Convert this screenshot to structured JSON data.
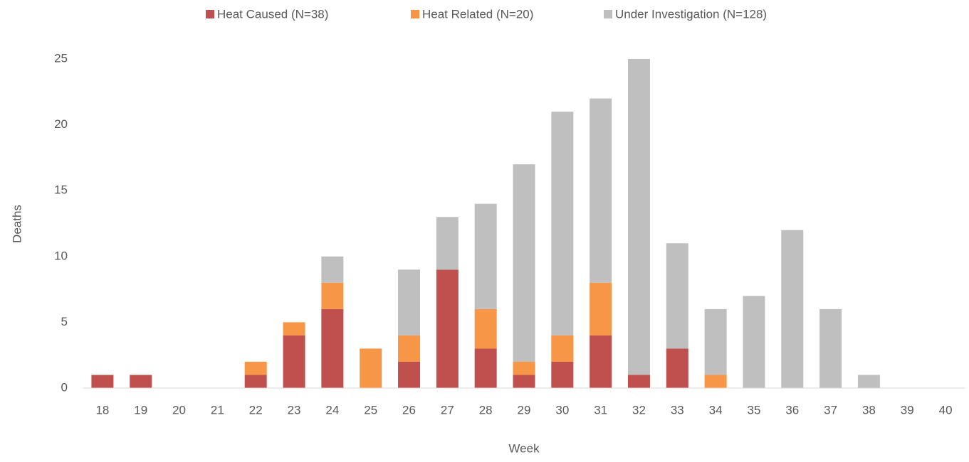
{
  "chart_data": {
    "type": "stacked-bar",
    "x_label": "Week",
    "y_label": "Deaths",
    "categories": [
      "18",
      "19",
      "20",
      "21",
      "22",
      "23",
      "24",
      "25",
      "26",
      "27",
      "28",
      "29",
      "30",
      "31",
      "32",
      "33",
      "34",
      "35",
      "36",
      "37",
      "38",
      "39",
      "40"
    ],
    "series": [
      {
        "name": "Heat Caused (N=38)",
        "color": "#c0504d",
        "values": [
          1,
          1,
          0,
          0,
          1,
          4,
          6,
          0,
          2,
          9,
          3,
          1,
          2,
          4,
          1,
          3,
          0,
          0,
          0,
          0,
          0,
          0,
          0
        ]
      },
      {
        "name": "Heat Related (N=20)",
        "color": "#f79646",
        "values": [
          0,
          0,
          0,
          0,
          1,
          1,
          2,
          3,
          2,
          0,
          3,
          1,
          2,
          4,
          0,
          0,
          1,
          0,
          0,
          0,
          0,
          0,
          0
        ]
      },
      {
        "name": "Under Investigation (N=128)",
        "color": "#bfbfbf",
        "values": [
          0,
          0,
          0,
          0,
          0,
          0,
          2,
          0,
          5,
          4,
          8,
          15,
          17,
          14,
          24,
          8,
          5,
          7,
          12,
          6,
          1,
          0,
          0
        ]
      }
    ],
    "ylim": [
      0,
      25
    ],
    "yticks": [
      0,
      5,
      10,
      15,
      20,
      25
    ],
    "grid": false,
    "legend": "top"
  }
}
